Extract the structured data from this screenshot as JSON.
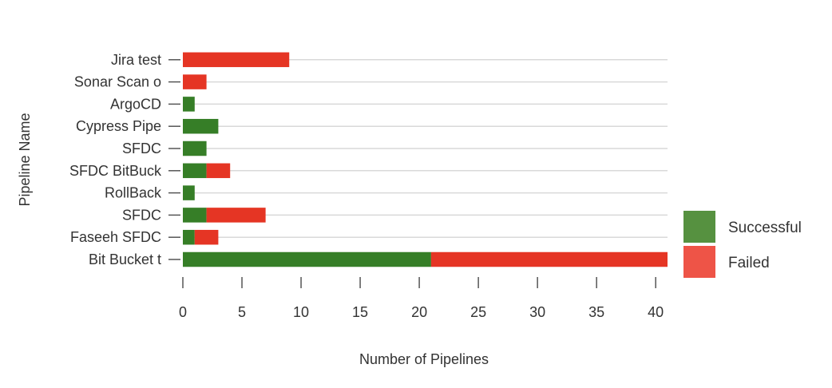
{
  "chart_data": {
    "type": "bar",
    "orientation": "horizontal",
    "stacked": true,
    "categories": [
      "Bit Bucket t",
      "Faseeh SFDC",
      "SFDC",
      "RollBack",
      "SFDC BitBuck",
      "SFDC",
      "Cypress Pipe",
      "ArgoCD",
      "Sonar Scan o",
      "Jira test"
    ],
    "series": [
      {
        "name": "Successful",
        "color": "#367e27",
        "legend_color": "#569140",
        "values": [
          21,
          1,
          2,
          1,
          2,
          2,
          3,
          1,
          0,
          0
        ]
      },
      {
        "name": "Failed",
        "color": "#e53524",
        "legend_color": "#ee5447",
        "values": [
          20,
          2,
          5,
          0,
          2,
          0,
          0,
          0,
          2,
          9
        ]
      }
    ],
    "xlabel": "Number of Pipelines",
    "ylabel": "Pipeline Name",
    "xlim": [
      0,
      41
    ],
    "xticks": [
      0,
      5,
      10,
      15,
      20,
      25,
      30,
      35,
      40
    ],
    "grid": true,
    "legend": "right"
  }
}
